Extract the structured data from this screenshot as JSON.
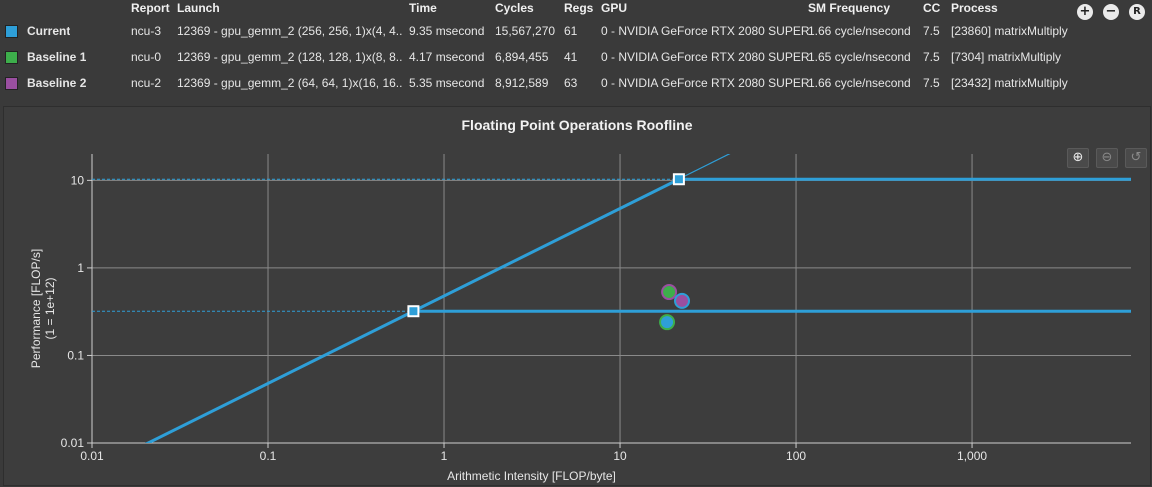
{
  "table": {
    "headers": {
      "report": "Report",
      "launch": "Launch",
      "time": "Time",
      "cycles": "Cycles",
      "regs": "Regs",
      "gpu": "GPU",
      "sm_frequency": "SM Frequency",
      "cc": "CC",
      "process": "Process"
    },
    "rows": [
      {
        "name": "Current",
        "color": "#2e9fd8",
        "report": "ncu-3",
        "launch": "12369 - gpu_gemm_2 (256, 256, 1)x(4, 4...",
        "time": "9.35 msecond",
        "cycles": "15,567,270",
        "regs": "61",
        "gpu": "0 - NVIDIA GeForce RTX 2080 SUPER",
        "sm_frequency": "1.66 cycle/nsecond",
        "cc": "7.5",
        "process": "[23860] matrixMultiply"
      },
      {
        "name": "Baseline 1",
        "color": "#3dae4b",
        "report": "ncu-0",
        "launch": "12369 - gpu_gemm_2 (128, 128, 1)x(8, 8...",
        "time": "4.17 msecond",
        "cycles": "6,894,455",
        "regs": "41",
        "gpu": "0 - NVIDIA GeForce RTX 2080 SUPER",
        "sm_frequency": "1.65 cycle/nsecond",
        "cc": "7.5",
        "process": "[7304] matrixMultiply"
      },
      {
        "name": "Baseline 2",
        "color": "#9a4fa0",
        "report": "ncu-2",
        "launch": "12369 - gpu_gemm_2 (64, 64, 1)x(16, 16...",
        "time": "5.35 msecond",
        "cycles": "8,912,589",
        "regs": "63",
        "gpu": "0 - NVIDIA GeForce RTX 2080 SUPER",
        "sm_frequency": "1.66 cycle/nsecond",
        "cc": "7.5",
        "process": "[23432] matrixMultiply"
      }
    ]
  },
  "toolbar": {
    "add_icon": "plus-circle-icon",
    "remove_icon": "minus-circle-icon",
    "reset_icon": "r-circle-icon",
    "reset_glyph": "R"
  },
  "chart_controls": {
    "zoom_in_icon": "zoom-in-icon",
    "zoom_out_icon": "zoom-out-icon",
    "reset_icon": "reset-view-icon"
  },
  "chart_data": {
    "type": "scatter",
    "title": "Floating Point Operations Roofline",
    "xlabel": "Arithmetic Intensity [FLOP/byte]",
    "ylabel": "Performance [FLOP/s]",
    "ylabel2": "(1 = 1e+12)",
    "xscale": "log",
    "yscale": "log",
    "xlim": [
      0.01,
      8000
    ],
    "ylim": [
      0.01,
      20
    ],
    "x_ticks": [
      {
        "v": 0.01,
        "label": "0.01"
      },
      {
        "v": 0.1,
        "label": "0.1"
      },
      {
        "v": 1,
        "label": "1"
      },
      {
        "v": 10,
        "label": "10"
      },
      {
        "v": 100,
        "label": "100"
      },
      {
        "v": 1000,
        "label": "1,000"
      }
    ],
    "y_ticks": [
      {
        "v": 0.01,
        "label": "0.01"
      },
      {
        "v": 0.1,
        "label": "0.1"
      },
      {
        "v": 1,
        "label": "1"
      },
      {
        "v": 10,
        "label": "10"
      }
    ],
    "grid": true,
    "roofline_color": "#2e9fd8",
    "bandwidth_slope": 0.48,
    "single_precision_peak": 10.3,
    "single_precision_ridge": 21.6,
    "double_precision_peak": 0.32,
    "double_precision_ridge": 0.67,
    "series": [
      {
        "name": "Current",
        "x": 18.5,
        "y": 0.24,
        "color": "#2e9fd8"
      },
      {
        "name": "Baseline 1",
        "x": 19.0,
        "y": 0.53,
        "color": "#3dae4b"
      },
      {
        "name": "Baseline 2",
        "x": 22.5,
        "y": 0.42,
        "color": "#9a4fa0"
      }
    ]
  }
}
